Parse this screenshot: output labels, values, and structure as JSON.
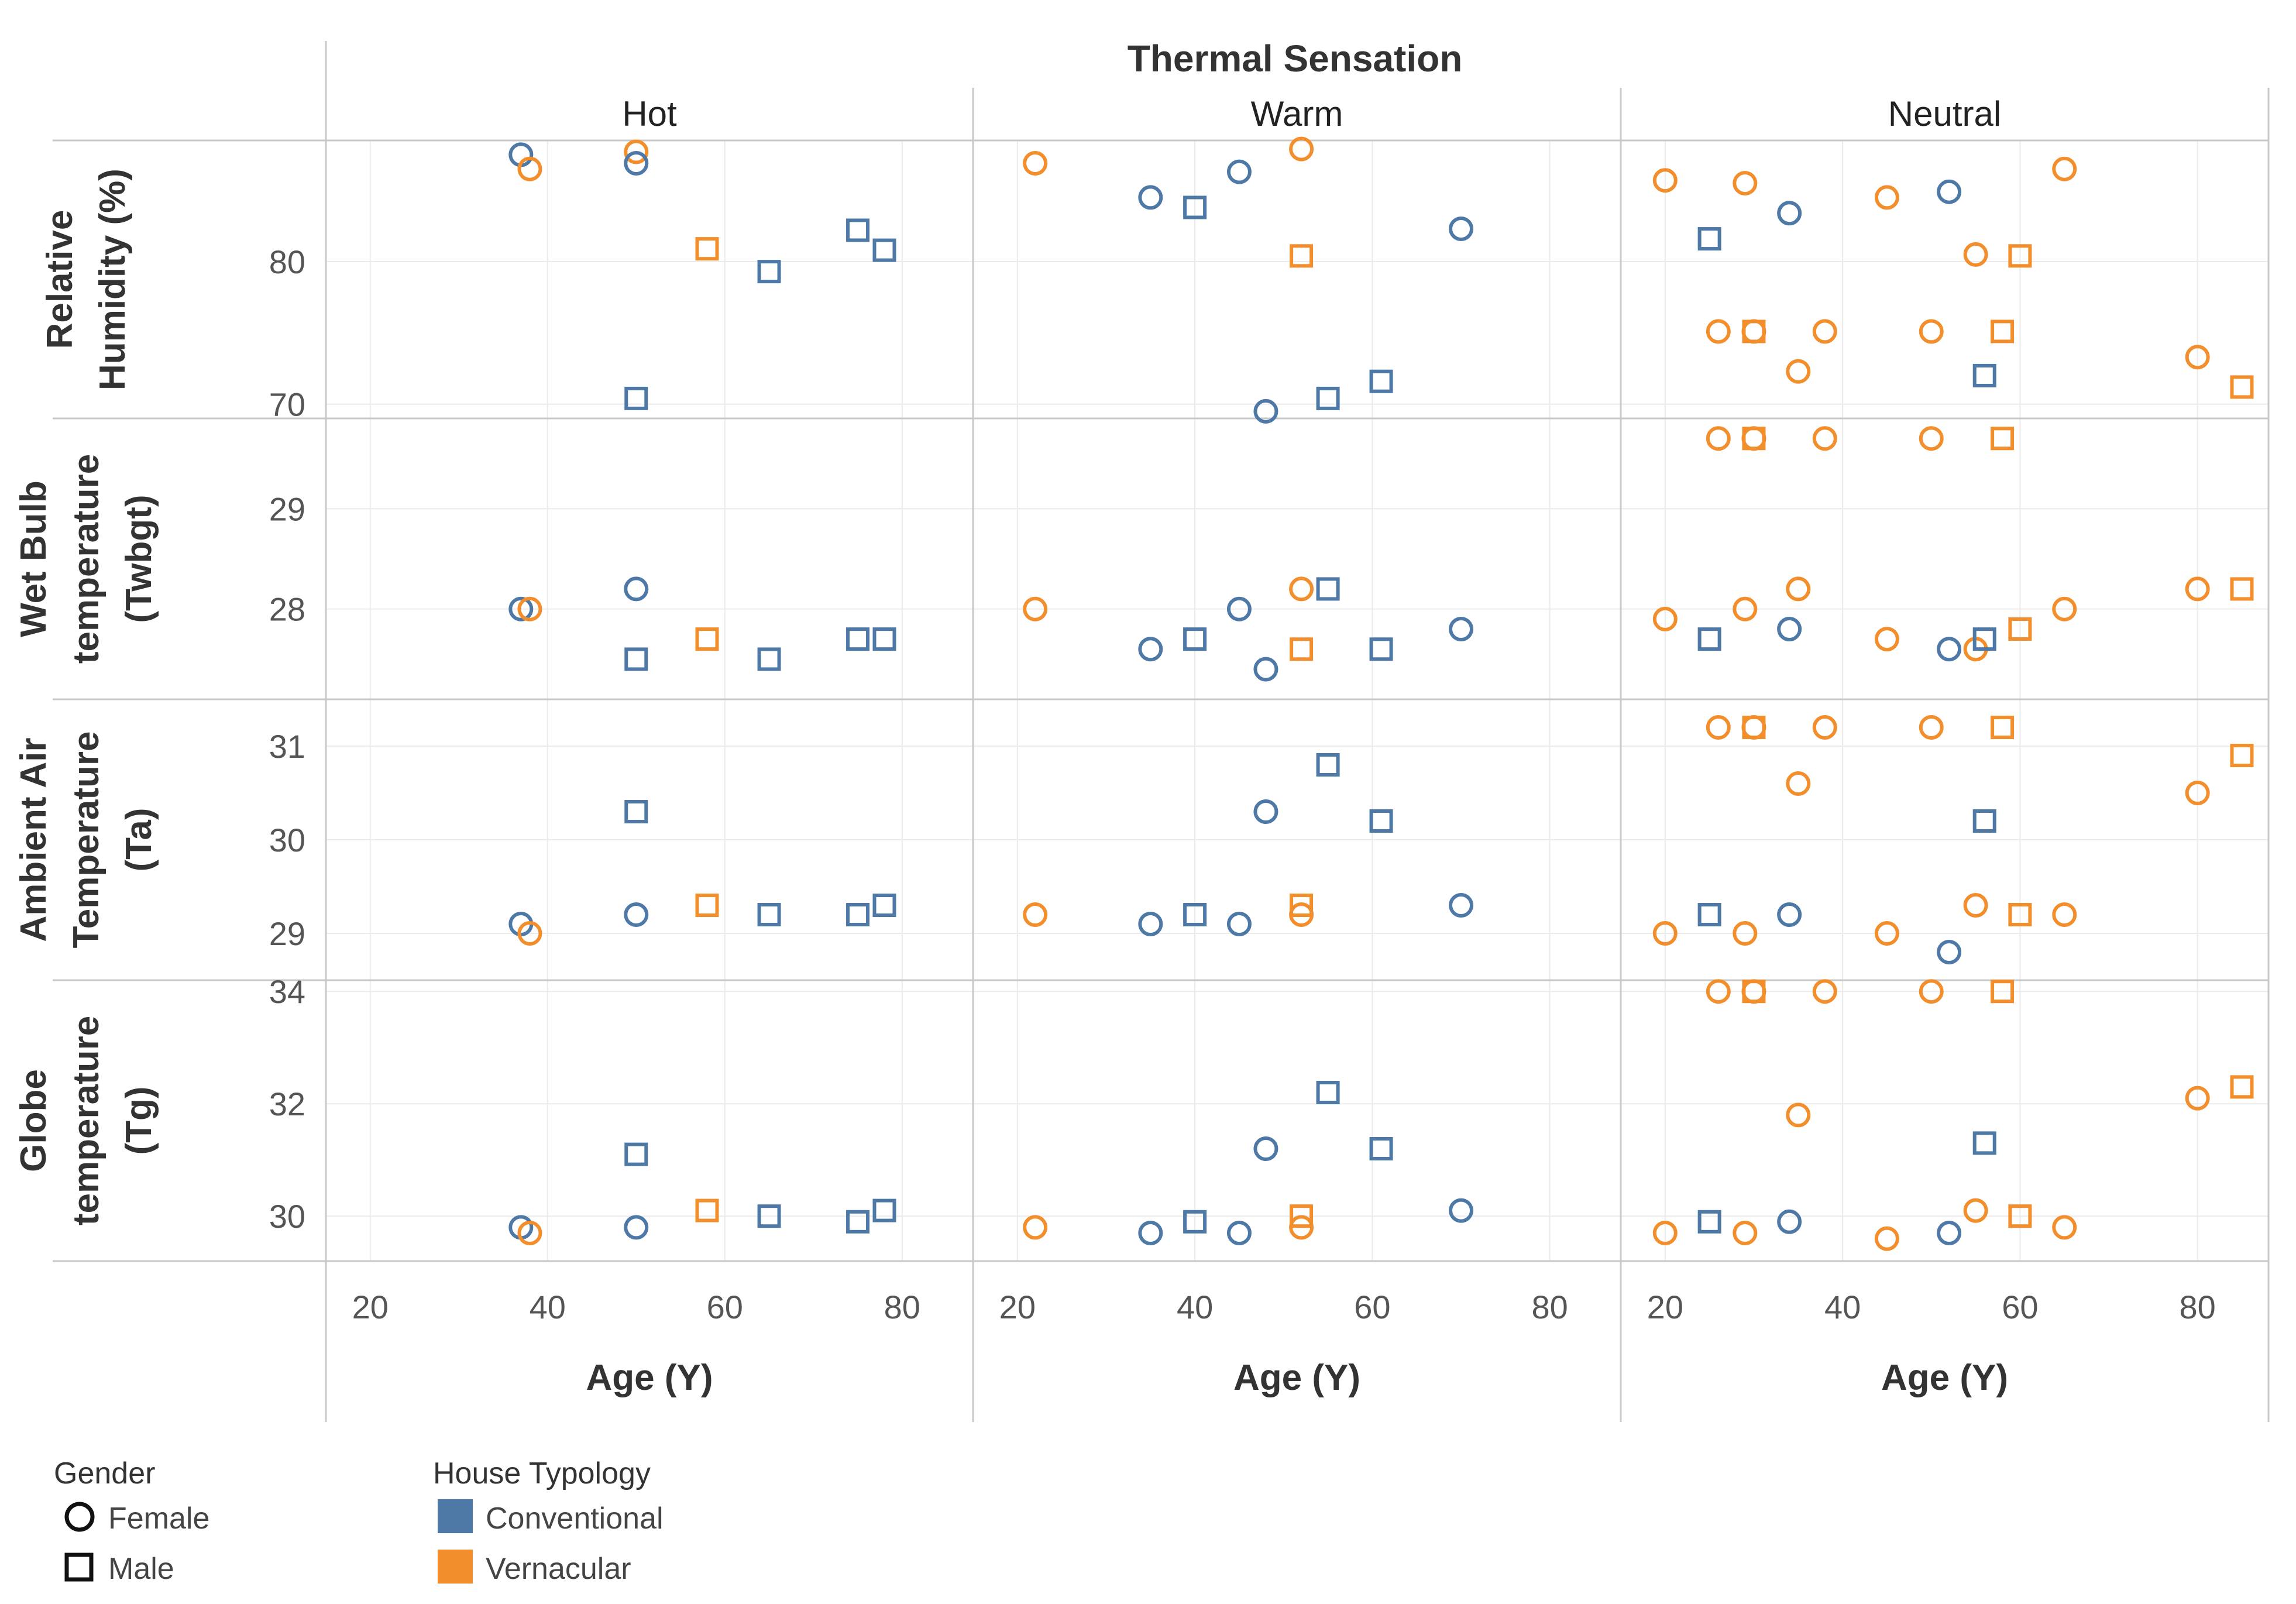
{
  "chart_data": {
    "type": "scatter",
    "title": "Thermal Sensation",
    "columns": [
      "Hot",
      "Warm",
      "Neutral"
    ],
    "xlabel": "Age (Y)",
    "xlim": [
      15,
      88
    ],
    "xticks": [
      20,
      40,
      60,
      80
    ],
    "rows": [
      {
        "label": [
          "Relative",
          "Humidity (%)"
        ],
        "ylim": [
          69,
          88.5
        ],
        "yticks": [
          70,
          80
        ]
      },
      {
        "label": [
          "Wet Bulb",
          "temperature",
          "(Twbgt)"
        ],
        "ylim": [
          27.1,
          29.9
        ],
        "yticks": [
          28,
          29
        ]
      },
      {
        "label": [
          "Ambient Air",
          "Temperature",
          "(Ta)"
        ],
        "ylim": [
          28.5,
          31.5
        ],
        "yticks": [
          29,
          30,
          31
        ]
      },
      {
        "label": [
          "Globe",
          "temperature",
          "(Tg)"
        ],
        "ylim": [
          29.2,
          34.2
        ],
        "yticks": [
          30,
          32,
          34
        ]
      }
    ],
    "legend": {
      "gender": {
        "title": "Gender",
        "items": [
          {
            "label": "Female",
            "shape": "circle"
          },
          {
            "label": "Male",
            "shape": "square"
          }
        ]
      },
      "typology": {
        "title": "House Typology",
        "items": [
          {
            "label": "Conventional",
            "color": "#4e79a7"
          },
          {
            "label": "Vernacular",
            "color": "#f28e2b"
          }
        ]
      }
    },
    "series": [
      {
        "col": 0,
        "age": 37,
        "g": "F",
        "h": "C",
        "v": [
          87.5,
          28.0,
          29.1,
          29.8
        ]
      },
      {
        "col": 0,
        "age": 38,
        "g": "F",
        "h": "V",
        "v": [
          86.5,
          28.0,
          29.0,
          29.7
        ]
      },
      {
        "col": 0,
        "age": 50,
        "g": "F",
        "h": "V",
        "v": [
          87.7,
          null,
          null,
          null
        ]
      },
      {
        "col": 0,
        "age": 50,
        "g": "F",
        "h": "C",
        "v": [
          86.9,
          28.2,
          29.2,
          29.8
        ]
      },
      {
        "col": 0,
        "age": 50,
        "g": "M",
        "h": "C",
        "v": [
          70.4,
          27.5,
          30.3,
          31.1
        ]
      },
      {
        "col": 0,
        "age": 58,
        "g": "M",
        "h": "V",
        "v": [
          80.9,
          27.7,
          29.3,
          30.1
        ]
      },
      {
        "col": 0,
        "age": 65,
        "g": "M",
        "h": "C",
        "v": [
          79.3,
          27.5,
          29.2,
          30.0
        ]
      },
      {
        "col": 0,
        "age": 75,
        "g": "M",
        "h": "C",
        "v": [
          82.2,
          27.7,
          29.2,
          29.9
        ]
      },
      {
        "col": 0,
        "age": 78,
        "g": "M",
        "h": "C",
        "v": [
          80.8,
          27.7,
          29.3,
          30.1
        ]
      },
      {
        "col": 1,
        "age": 22,
        "g": "F",
        "h": "V",
        "v": [
          86.9,
          28.0,
          29.2,
          29.8
        ]
      },
      {
        "col": 1,
        "age": 35,
        "g": "F",
        "h": "C",
        "v": [
          84.5,
          27.6,
          29.1,
          29.7
        ]
      },
      {
        "col": 1,
        "age": 40,
        "g": "M",
        "h": "C",
        "v": [
          83.8,
          27.7,
          29.2,
          29.9
        ]
      },
      {
        "col": 1,
        "age": 45,
        "g": "F",
        "h": "C",
        "v": [
          86.3,
          28.0,
          29.1,
          29.7
        ]
      },
      {
        "col": 1,
        "age": 48,
        "g": "F",
        "h": "C",
        "v": [
          69.5,
          27.4,
          30.3,
          31.2
        ]
      },
      {
        "col": 1,
        "age": 52,
        "g": "F",
        "h": "V",
        "v": [
          87.9,
          28.2,
          29.2,
          29.8
        ]
      },
      {
        "col": 1,
        "age": 52,
        "g": "M",
        "h": "V",
        "v": [
          80.4,
          27.6,
          29.3,
          30.0
        ]
      },
      {
        "col": 1,
        "age": 55,
        "g": "M",
        "h": "C",
        "v": [
          70.4,
          28.2,
          30.8,
          32.2
        ]
      },
      {
        "col": 1,
        "age": 61,
        "g": "M",
        "h": "C",
        "v": [
          71.6,
          27.6,
          30.2,
          31.2
        ]
      },
      {
        "col": 1,
        "age": 70,
        "g": "F",
        "h": "C",
        "v": [
          82.3,
          27.8,
          29.3,
          30.1
        ]
      },
      {
        "col": 2,
        "age": 20,
        "g": "F",
        "h": "V",
        "v": [
          85.7,
          27.9,
          29.0,
          29.7
        ]
      },
      {
        "col": 2,
        "age": 25,
        "g": "M",
        "h": "C",
        "v": [
          81.6,
          27.7,
          29.2,
          29.9
        ]
      },
      {
        "col": 2,
        "age": 26,
        "g": "F",
        "h": "V",
        "v": [
          75.1,
          29.7,
          31.2,
          34.0
        ]
      },
      {
        "col": 2,
        "age": 29,
        "g": "F",
        "h": "V",
        "v": [
          85.5,
          28.0,
          29.0,
          29.7
        ]
      },
      {
        "col": 2,
        "age": 30,
        "g": "F",
        "h": "V",
        "v": [
          75.1,
          29.7,
          31.2,
          34.0
        ]
      },
      {
        "col": 2,
        "age": 30,
        "g": "M",
        "h": "V",
        "v": [
          75.1,
          29.7,
          31.2,
          34.0
        ]
      },
      {
        "col": 2,
        "age": 34,
        "g": "F",
        "h": "C",
        "v": [
          83.4,
          27.8,
          29.2,
          29.9
        ]
      },
      {
        "col": 2,
        "age": 35,
        "g": "F",
        "h": "V",
        "v": [
          72.3,
          28.2,
          30.6,
          31.8
        ]
      },
      {
        "col": 2,
        "age": 38,
        "g": "F",
        "h": "V",
        "v": [
          75.1,
          29.7,
          31.2,
          34.0
        ]
      },
      {
        "col": 2,
        "age": 45,
        "g": "F",
        "h": "V",
        "v": [
          84.5,
          27.7,
          29.0,
          29.6
        ]
      },
      {
        "col": 2,
        "age": 50,
        "g": "F",
        "h": "V",
        "v": [
          75.1,
          29.7,
          31.2,
          34.0
        ]
      },
      {
        "col": 2,
        "age": 52,
        "g": "F",
        "h": "C",
        "v": [
          84.9,
          27.6,
          28.8,
          29.7
        ]
      },
      {
        "col": 2,
        "age": 55,
        "g": "F",
        "h": "V",
        "v": [
          80.5,
          27.6,
          29.3,
          30.1
        ]
      },
      {
        "col": 2,
        "age": 56,
        "g": "M",
        "h": "C",
        "v": [
          72.0,
          27.7,
          30.2,
          31.3
        ]
      },
      {
        "col": 2,
        "age": 58,
        "g": "M",
        "h": "V",
        "v": [
          75.1,
          29.7,
          31.2,
          34.0
        ]
      },
      {
        "col": 2,
        "age": 60,
        "g": "M",
        "h": "V",
        "v": [
          80.4,
          27.8,
          29.2,
          30.0
        ]
      },
      {
        "col": 2,
        "age": 65,
        "g": "F",
        "h": "V",
        "v": [
          86.5,
          28.0,
          29.2,
          29.8
        ]
      },
      {
        "col": 2,
        "age": 80,
        "g": "F",
        "h": "V",
        "v": [
          73.3,
          28.2,
          30.5,
          32.1
        ]
      },
      {
        "col": 2,
        "age": 85,
        "g": "M",
        "h": "V",
        "v": [
          71.2,
          28.2,
          30.9,
          32.3
        ]
      }
    ]
  }
}
